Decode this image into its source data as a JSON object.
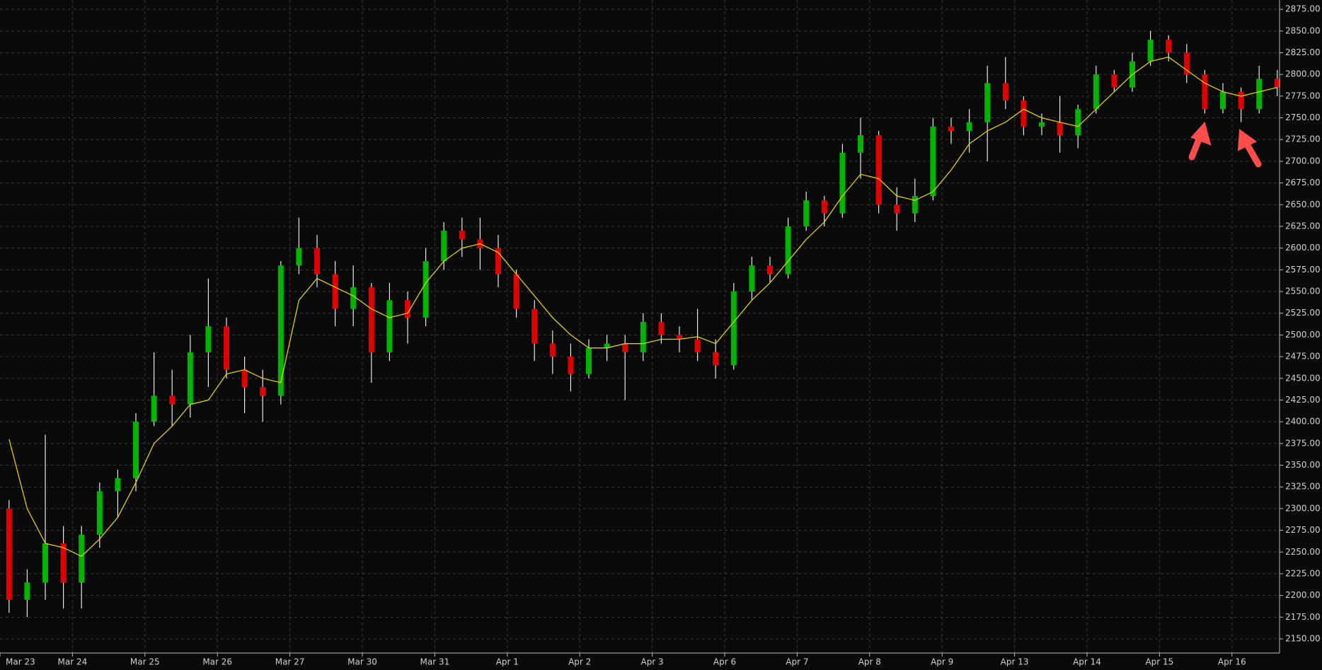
{
  "chart_data": {
    "type": "candlestick",
    "categories": [
      "Mar 23",
      null,
      null,
      null,
      "Mar 24",
      null,
      null,
      null,
      "Mar 25",
      null,
      null,
      null,
      "Mar 26",
      null,
      null,
      null,
      "Mar 27",
      null,
      null,
      null,
      "Mar 30",
      null,
      null,
      null,
      "Mar 31",
      null,
      null,
      null,
      "Apr 1",
      null,
      null,
      null,
      "Apr 2",
      null,
      null,
      null,
      "Apr 3",
      null,
      null,
      null,
      "Apr 6",
      null,
      null,
      null,
      "Apr 7",
      null,
      null,
      null,
      "Apr 8",
      null,
      null,
      null,
      "Apr 9",
      null,
      null,
      null,
      "Apr 13",
      null,
      null,
      null,
      "Apr 14",
      null,
      null,
      null,
      "Apr 15",
      null,
      null,
      null,
      "Apr 16",
      null,
      null
    ],
    "open": [
      2300,
      2195,
      2215,
      2260,
      2215,
      2270,
      2320,
      2335,
      2400,
      2430,
      2420,
      2480,
      2510,
      2460,
      2440,
      2430,
      2580,
      2600,
      2570,
      2530,
      2555,
      2480,
      2540,
      2520,
      2585,
      2620,
      2610,
      2600,
      2570,
      2530,
      2490,
      2475,
      2455,
      2485,
      2490,
      2480,
      2515,
      2500,
      2495,
      2480,
      2465,
      2550,
      2580,
      2570,
      2625,
      2655,
      2640,
      2710,
      2730,
      2650,
      2640,
      2660,
      2740,
      2735,
      2745,
      2790,
      2770,
      2740,
      2745,
      2730,
      2760,
      2800,
      2785,
      2815,
      2840,
      2825,
      2800,
      2760,
      2780,
      2760,
      2795
    ],
    "high": [
      2310,
      2230,
      2385,
      2280,
      2280,
      2330,
      2345,
      2410,
      2480,
      2460,
      2500,
      2565,
      2520,
      2475,
      2460,
      2585,
      2635,
      2615,
      2585,
      2580,
      2560,
      2560,
      2550,
      2600,
      2630,
      2635,
      2635,
      2615,
      2575,
      2540,
      2505,
      2490,
      2495,
      2500,
      2500,
      2525,
      2525,
      2510,
      2530,
      2495,
      2560,
      2590,
      2590,
      2635,
      2665,
      2660,
      2720,
      2750,
      2735,
      2670,
      2680,
      2750,
      2750,
      2760,
      2810,
      2820,
      2775,
      2755,
      2775,
      2765,
      2810,
      2805,
      2825,
      2850,
      2845,
      2835,
      2805,
      2790,
      2785,
      2810,
      2805
    ],
    "low": [
      2180,
      2175,
      2195,
      2185,
      2185,
      2255,
      2290,
      2320,
      2395,
      2395,
      2405,
      2440,
      2450,
      2410,
      2400,
      2420,
      2570,
      2555,
      2510,
      2510,
      2445,
      2470,
      2490,
      2510,
      2575,
      2590,
      2575,
      2555,
      2520,
      2470,
      2455,
      2435,
      2450,
      2470,
      2425,
      2470,
      2490,
      2480,
      2470,
      2450,
      2460,
      2540,
      2560,
      2565,
      2620,
      2625,
      2635,
      2680,
      2640,
      2620,
      2630,
      2655,
      2720,
      2710,
      2700,
      2760,
      2730,
      2730,
      2710,
      2715,
      2755,
      2780,
      2780,
      2810,
      2815,
      2790,
      2755,
      2755,
      2745,
      2755,
      2775
    ],
    "close": [
      2195,
      2215,
      2260,
      2215,
      2270,
      2320,
      2335,
      2400,
      2430,
      2420,
      2480,
      2510,
      2460,
      2440,
      2430,
      2580,
      2600,
      2570,
      2530,
      2555,
      2480,
      2540,
      2520,
      2585,
      2620,
      2610,
      2600,
      2570,
      2530,
      2490,
      2475,
      2455,
      2485,
      2490,
      2480,
      2515,
      2500,
      2495,
      2480,
      2465,
      2550,
      2580,
      2570,
      2625,
      2655,
      2640,
      2710,
      2730,
      2650,
      2640,
      2660,
      2740,
      2735,
      2745,
      2790,
      2770,
      2740,
      2745,
      2730,
      2760,
      2800,
      2785,
      2815,
      2840,
      2825,
      2800,
      2760,
      2780,
      2760,
      2795,
      2785
    ],
    "up_color": "#00b400",
    "down_color": "#e00000",
    "wick_color": "#e8e8e8",
    "moving_average": {
      "color": "#e0d000",
      "values": [
        2380,
        2300,
        2260,
        2255,
        2245,
        2265,
        2290,
        2330,
        2375,
        2395,
        2420,
        2425,
        2455,
        2460,
        2450,
        2445,
        2540,
        2565,
        2555,
        2545,
        2530,
        2520,
        2525,
        2560,
        2585,
        2600,
        2605,
        2595,
        2570,
        2545,
        2520,
        2500,
        2485,
        2485,
        2490,
        2490,
        2495,
        2495,
        2498,
        2490,
        2515,
        2540,
        2560,
        2585,
        2610,
        2630,
        2660,
        2685,
        2680,
        2660,
        2655,
        2665,
        2690,
        2720,
        2735,
        2745,
        2760,
        2750,
        2745,
        2740,
        2760,
        2780,
        2800,
        2815,
        2820,
        2805,
        2790,
        2780,
        2775,
        2780,
        2785
      ]
    },
    "ylim": [
      2133.7,
      2885.7
    ],
    "yticks": [
      {
        "value": 2150,
        "label": "2150.00"
      },
      {
        "value": 2175,
        "label": "2175.00"
      },
      {
        "value": 2200,
        "label": "2200.00"
      },
      {
        "value": 2225,
        "label": "2225.00"
      },
      {
        "value": 2250,
        "label": "2250.00"
      },
      {
        "value": 2275,
        "label": "2275.00"
      },
      {
        "value": 2300,
        "label": "2300.00"
      },
      {
        "value": 2325,
        "label": "2325.00"
      },
      {
        "value": 2350,
        "label": "2350.00"
      },
      {
        "value": 2375,
        "label": "2375.00"
      },
      {
        "value": 2400,
        "label": "2400.00"
      },
      {
        "value": 2425,
        "label": "2425.00"
      },
      {
        "value": 2450,
        "label": "2450.00"
      },
      {
        "value": 2475,
        "label": "2475.00"
      },
      {
        "value": 2500,
        "label": "2500.00"
      },
      {
        "value": 2525,
        "label": "2525.00"
      },
      {
        "value": 2550,
        "label": "2550.00"
      },
      {
        "value": 2575,
        "label": "2575.00"
      },
      {
        "value": 2600,
        "label": "2600.00"
      },
      {
        "value": 2625,
        "label": "2625.00"
      },
      {
        "value": 2650,
        "label": "2650.00"
      },
      {
        "value": 2675,
        "label": "2675.00"
      },
      {
        "value": 2700,
        "label": "2700.00"
      },
      {
        "value": 2725,
        "label": "2725.00"
      },
      {
        "value": 2750,
        "label": "2750.00"
      },
      {
        "value": 2775,
        "label": "2775.00"
      },
      {
        "value": 2800,
        "label": "2800.00"
      },
      {
        "value": 2825,
        "label": "2825.00"
      },
      {
        "value": 2850,
        "label": "2850.00"
      },
      {
        "value": 2875,
        "label": "2875.00"
      }
    ],
    "grid": true
  }
}
